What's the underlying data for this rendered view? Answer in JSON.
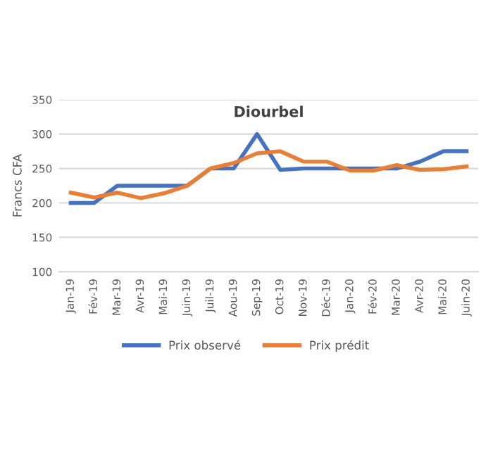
{
  "chart_data": {
    "type": "line",
    "title": "Diourbel",
    "ylabel": "Francs CFA",
    "categories": [
      "Jan-19",
      "Fév-19",
      "Mar-19",
      "Avr-19",
      "Mai-19",
      "Juin-19",
      "Juil-19",
      "Aou-19",
      "Sep-19",
      "Oct-19",
      "Nov-19",
      "Déc-19",
      "Jan-20",
      "Fév-20",
      "Mar-20",
      "Avr-20",
      "Mai-20",
      "Juin-20"
    ],
    "series": [
      {
        "name": "Prix observé",
        "color": "#4472c4",
        "values": [
          200,
          200,
          225,
          225,
          225,
          225,
          250,
          250,
          300,
          248,
          250,
          250,
          250,
          250,
          250,
          260,
          275,
          275
        ]
      },
      {
        "name": "Prix prédit",
        "color": "#ed7d31",
        "values": [
          215,
          208,
          215,
          207,
          214,
          225,
          250,
          258,
          272,
          275,
          260,
          260,
          247,
          247,
          255,
          248,
          249,
          253
        ]
      }
    ],
    "ylim": [
      100,
      350
    ],
    "yticks": [
      100,
      150,
      200,
      250,
      300,
      350
    ],
    "grid": "y",
    "legend": "bottom",
    "marker": "none",
    "line_style": "solid"
  }
}
